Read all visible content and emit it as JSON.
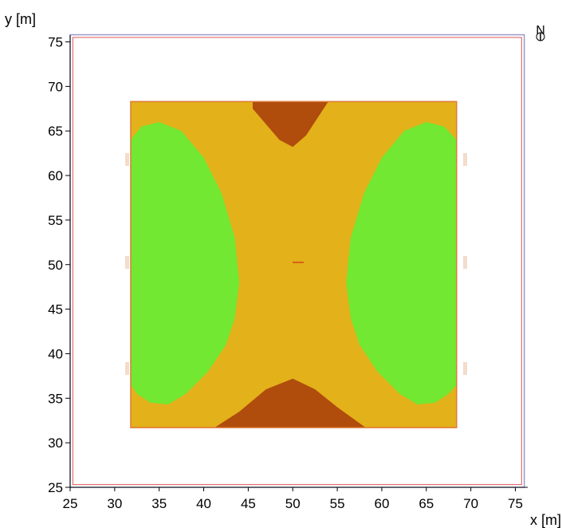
{
  "chart_data": {
    "type": "heatmap",
    "xlabel": "x [m]",
    "ylabel": "y [m]",
    "north_label": "N",
    "xlim": [
      25,
      76
    ],
    "ylim": [
      25,
      76
    ],
    "x_ticks": [
      25,
      30,
      35,
      40,
      45,
      50,
      55,
      60,
      65,
      70,
      75
    ],
    "y_ticks": [
      25,
      30,
      35,
      40,
      45,
      50,
      55,
      60,
      65,
      70,
      75
    ],
    "grid": false,
    "outer_boundary": {
      "x": [
        25.3,
        75.7
      ],
      "y": [
        25.3,
        75.5
      ]
    },
    "calculation_area": {
      "x": [
        31.8,
        68.4
      ],
      "y": [
        31.7,
        68.3
      ]
    },
    "colors": {
      "boundary_outer": "#9999cc",
      "boundary_inner": "#e05555",
      "level_low": "#72e832",
      "level_mid": "#e3b11a",
      "level_high": "#b04c0c",
      "area_border": "#e07a3a"
    },
    "regions": {
      "high_top": [
        [
          45.5,
          68.3
        ],
        [
          54.5,
          68.3
        ],
        [
          54.0,
          68.3
        ],
        [
          51.5,
          64.5
        ],
        [
          50.0,
          63.2
        ],
        [
          48.5,
          64.0
        ],
        [
          45.5,
          67.5
        ]
      ],
      "high_bottom": [
        [
          41.2,
          31.7
        ],
        [
          58.2,
          31.7
        ],
        [
          55.0,
          34.0
        ],
        [
          52.5,
          36.0
        ],
        [
          50.0,
          37.2
        ],
        [
          47.0,
          36.0
        ],
        [
          44.0,
          33.5
        ]
      ],
      "low_left": [
        [
          31.8,
          64.0
        ],
        [
          33.0,
          65.5
        ],
        [
          35.0,
          66.0
        ],
        [
          37.5,
          65.0
        ],
        [
          40.0,
          62.0
        ],
        [
          42.0,
          58.0
        ],
        [
          43.5,
          53.0
        ],
        [
          44.0,
          48.0
        ],
        [
          43.5,
          44.0
        ],
        [
          42.5,
          41.0
        ],
        [
          40.5,
          38.0
        ],
        [
          38.0,
          35.5
        ],
        [
          36.0,
          34.3
        ],
        [
          34.0,
          34.5
        ],
        [
          32.5,
          35.5
        ],
        [
          31.8,
          36.5
        ]
      ],
      "low_right": [
        [
          68.4,
          64.0
        ],
        [
          67.0,
          65.5
        ],
        [
          65.0,
          66.0
        ],
        [
          62.5,
          65.0
        ],
        [
          60.0,
          62.0
        ],
        [
          58.0,
          58.0
        ],
        [
          56.5,
          53.0
        ],
        [
          56.0,
          48.0
        ],
        [
          56.5,
          44.0
        ],
        [
          57.5,
          41.0
        ],
        [
          59.5,
          38.0
        ],
        [
          62.0,
          35.5
        ],
        [
          64.0,
          34.3
        ],
        [
          66.0,
          34.5
        ],
        [
          67.5,
          35.5
        ],
        [
          68.4,
          36.5
        ]
      ]
    }
  }
}
